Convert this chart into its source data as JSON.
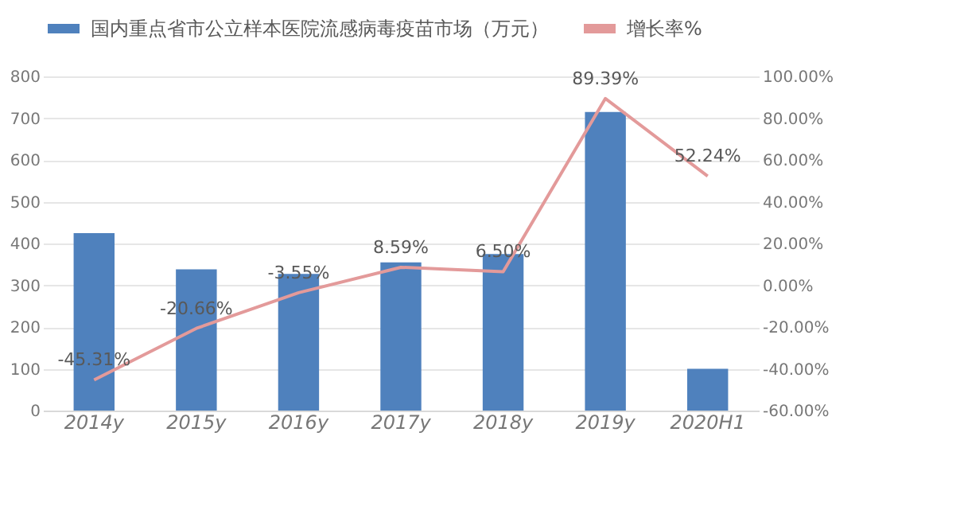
{
  "chart_data": {
    "type": "bar",
    "categories": [
      "2014y",
      "2015y",
      "2016y",
      "2017y",
      "2018y",
      "2019y",
      "2020H1"
    ],
    "series": [
      {
        "name": "国内重点省市公立样本医院流感病毒疫苗市场（万元）",
        "color": "#4f81bd",
        "values": [
          425,
          338,
          327,
          355,
          375,
          715,
          100
        ]
      },
      {
        "name": "增长率%",
        "type": "line",
        "axis": "y2",
        "color": "#e39a9a",
        "values": [
          -45.31,
          -20.66,
          -3.55,
          8.59,
          6.5,
          89.39,
          52.24
        ],
        "value_labels": [
          "-45.31%",
          "-20.66%",
          "-3.55%",
          "8.59%",
          "6.50%",
          "89.39%",
          "52.24%"
        ]
      }
    ],
    "ylim": [
      0,
      800
    ],
    "yticks": [
      0,
      100,
      200,
      300,
      400,
      500,
      600,
      700,
      800
    ],
    "y2lim": [
      -60,
      100
    ],
    "y2ticks": [
      {
        "value": -60,
        "label": "-60.00%"
      },
      {
        "value": -40,
        "label": "-40.00%"
      },
      {
        "value": -20,
        "label": "-20.00%"
      },
      {
        "value": 0,
        "label": "0.00%"
      },
      {
        "value": 20,
        "label": "20.00%"
      },
      {
        "value": 40,
        "label": "40.00%"
      },
      {
        "value": 60,
        "label": "60.00%"
      },
      {
        "value": 80,
        "label": "80.00%"
      },
      {
        "value": 100,
        "label": "100.00%"
      }
    ],
    "grid": "y",
    "legend": "top",
    "marker": "none"
  }
}
